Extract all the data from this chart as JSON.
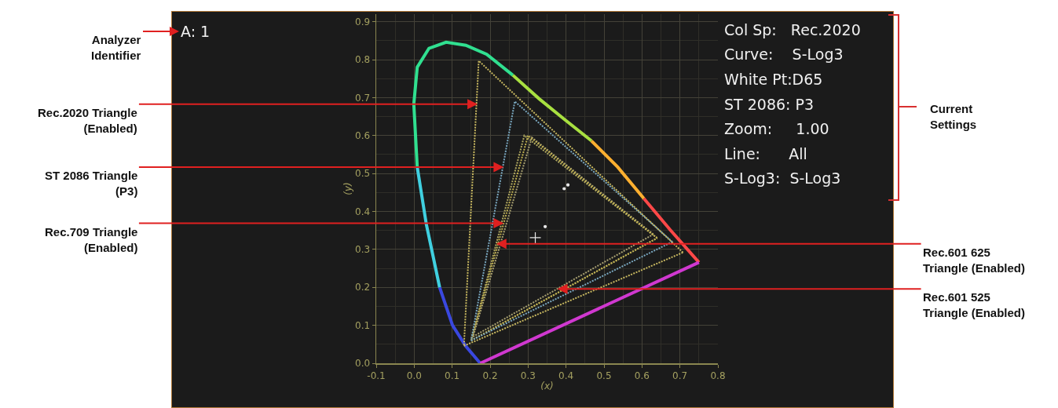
{
  "chart_data": {
    "type": "line",
    "xlabel": "(x)",
    "ylabel": "(y)",
    "xlim": [
      -0.1,
      0.8
    ],
    "ylim": [
      0,
      0.92
    ],
    "xticks": [
      -0.1,
      {
        "value": 0,
        "label": "0.0"
      },
      0.1,
      0.2,
      0.3,
      0.4,
      0.5,
      0.6,
      0.7,
      0.8
    ],
    "yticks": [
      {
        "value": 0,
        "label": "0.0"
      },
      0.1,
      0.2,
      0.3,
      0.4,
      0.5,
      0.6,
      0.7,
      0.8,
      0.9
    ],
    "grid": true,
    "series": [
      {
        "color": "#3a48e0",
        "line_style": "solid",
        "x": [
          0.174,
          0.136,
          0.101,
          0.067
        ],
        "values": [
          0.0,
          0.045,
          0.1,
          0.2
        ]
      },
      {
        "color": "#40d0e0",
        "line_style": "solid",
        "x": [
          0.067,
          0.032,
          0.008
        ],
        "values": [
          0.2,
          0.366,
          0.517
        ]
      },
      {
        "color": "#30e090",
        "line_style": "solid",
        "x": [
          0.008,
          -0.001,
          0.008,
          0.039,
          0.084,
          0.136,
          0.191,
          0.26
        ],
        "values": [
          0.517,
          0.683,
          0.78,
          0.83,
          0.846,
          0.838,
          0.814,
          0.759
        ]
      },
      {
        "color": "#a8e040",
        "line_style": "solid",
        "x": [
          0.26,
          0.329,
          0.398,
          0.467
        ],
        "values": [
          0.759,
          0.697,
          0.641,
          0.586
        ]
      },
      {
        "color": "#ffb030",
        "line_style": "solid",
        "x": [
          0.467,
          0.536,
          0.605
        ],
        "values": [
          0.586,
          0.517,
          0.434
        ]
      },
      {
        "color": "#ff4848",
        "line_style": "solid",
        "x": [
          0.605,
          0.674,
          0.75
        ],
        "values": [
          0.434,
          0.352,
          0.266
        ]
      },
      {
        "color": "#d038d0",
        "line_style": "solid",
        "x": [
          0.75,
          0.174
        ],
        "values": [
          0.266,
          0.0
        ]
      },
      {
        "color": "#c8b860",
        "line_style": "dotted",
        "x": [
          0.708,
          0.17,
          0.131
        ],
        "values": [
          0.292,
          0.797,
          0.046
        ]
      },
      {
        "color": "#c8b860",
        "line_style": "dotted",
        "x": [
          0.131,
          0.708
        ],
        "values": [
          0.046,
          0.292
        ]
      },
      {
        "color": "#7aa8c0",
        "line_style": "dotted",
        "x": [
          0.68,
          0.265,
          0.15
        ],
        "values": [
          0.32,
          0.69,
          0.06
        ]
      },
      {
        "color": "#7aa8c0",
        "line_style": "dotted",
        "x": [
          0.15,
          0.68
        ],
        "values": [
          0.06,
          0.32
        ]
      },
      {
        "color": "#c0b050",
        "line_style": "dotted",
        "x": [
          0.64,
          0.3,
          0.15
        ],
        "values": [
          0.33,
          0.6,
          0.06
        ]
      },
      {
        "color": "#c0b050",
        "line_style": "dotted",
        "x": [
          0.15,
          0.64
        ],
        "values": [
          0.06,
          0.33
        ]
      },
      {
        "color": "#b0a860",
        "line_style": "dotted",
        "x": [
          0.64,
          0.29,
          0.15
        ],
        "values": [
          0.33,
          0.6,
          0.06
        ]
      },
      {
        "color": "#b0a860",
        "line_style": "dotted",
        "x": [
          0.15,
          0.64
        ],
        "values": [
          0.06,
          0.33
        ]
      },
      {
        "color": "#a8a070",
        "line_style": "dotted",
        "x": [
          0.63,
          0.31,
          0.155
        ],
        "values": [
          0.34,
          0.595,
          0.07
        ]
      },
      {
        "color": "#a8a070",
        "line_style": "dotted",
        "x": [
          0.155,
          0.63
        ],
        "values": [
          0.07,
          0.34
        ]
      },
      {
        "type": "scatter",
        "color": "#e8e8e8",
        "marker": "cross",
        "x": [
          0.319
        ],
        "values": [
          0.331
        ]
      },
      {
        "type": "scatter",
        "color": "#e8e8e8",
        "marker": "circle",
        "x": [
          0.405,
          0.395,
          0.345
        ],
        "values": [
          0.47,
          0.46,
          0.36
        ]
      }
    ],
    "annotations": [
      "A: 1",
      "Analyzer\nIdentifier",
      "Col Sp:   Rec.2020",
      "Curve:    S-Log3",
      "White Pt:D65",
      "ST 2086: P3",
      "Zoom:     1.00",
      "Line:      All",
      "S-Log3:  S-Log3",
      "Current\nSettings",
      {
        "text": "Rec.2020 Triangle\n(Enabled)",
        "x": 0.167,
        "y": 0.683
      },
      {
        "text": "ST 2086 Triangle\n(P3)",
        "x": 0.236,
        "y": 0.517
      },
      {
        "text": "Rec.709 Triangle\n(Enabled)",
        "x": 0.236,
        "y": 0.369
      },
      {
        "text": "Rec.601 625\nTriangle (Enabled)",
        "x": 0.216,
        "y": 0.315
      },
      {
        "text": "Rec.601 525\nTriangle (Enabled)",
        "x": 0.377,
        "y": 0.196
      }
    ]
  }
}
